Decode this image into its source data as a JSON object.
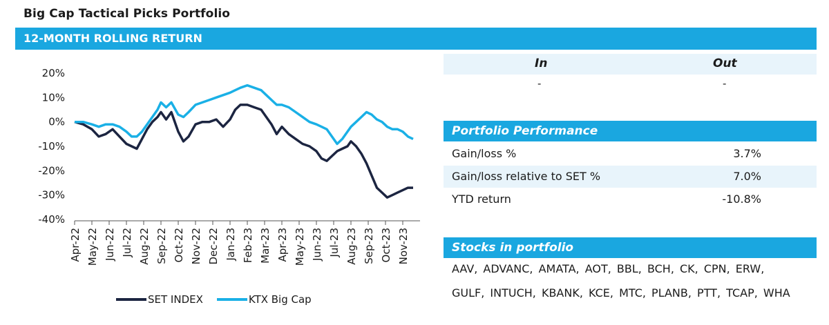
{
  "page": {
    "title": "Big Cap Tactical Picks Portfolio"
  },
  "section": {
    "title": "12-MONTH ROLLING RETURN"
  },
  "in_out": {
    "in_label": "In",
    "out_label": "Out",
    "in_value": "-",
    "out_value": "-"
  },
  "performance": {
    "title": "Portfolio Performance",
    "rows": [
      {
        "label": "Gain/loss %",
        "value": "3.7%"
      },
      {
        "label": "Gain/loss relative to SET %",
        "value": "7.0%"
      },
      {
        "label": "YTD return",
        "value": "-10.8%"
      }
    ]
  },
  "stocks": {
    "title": "Stocks in portfolio",
    "line1": "AAV, ADVANC, AMATA, AOT, BBL, BCH, CK, CPN, ERW,",
    "line2": "GULF, INTUCH, KBANK, KCE, MTC, PLANB, PTT, TCAP, WHA"
  },
  "colors": {
    "accent": "#1aa7e0",
    "set_line": "#1c2541",
    "ktx_line": "#1ab0e6",
    "light_row": "#e8f4fb"
  },
  "chart_data": {
    "type": "line",
    "title": "12-MONTH ROLLING RETURN",
    "xlabel": "",
    "ylabel": "",
    "ylim": [
      -40,
      20
    ],
    "yticks": [
      20,
      10,
      0,
      -10,
      -20,
      -30,
      -40
    ],
    "ytick_labels": [
      "20%",
      "10%",
      "0%",
      "-10%",
      "-20%",
      "-30%",
      "-40%"
    ],
    "xlim": [
      0,
      20
    ],
    "xtick_labels": [
      "Apr-22",
      "May-22",
      "Jun-22",
      "Jul-22",
      "Aug-22",
      "Sep-22",
      "Oct-22",
      "Nov-22",
      "Dec-22",
      "Jan-23",
      "Feb-23",
      "Mar-23",
      "Apr-23",
      "May-23",
      "Jun-23",
      "Jul-23",
      "Aug-23",
      "Sep-23",
      "Oct-23",
      "Nov-23"
    ],
    "legend_position": "bottom",
    "series": [
      {
        "name": "SET INDEX",
        "color": "#1c2541",
        "points": [
          [
            0,
            0
          ],
          [
            0.5,
            -1
          ],
          [
            1,
            -3
          ],
          [
            1.4,
            -6
          ],
          [
            1.8,
            -5
          ],
          [
            2.2,
            -3
          ],
          [
            2.6,
            -6
          ],
          [
            3.0,
            -9
          ],
          [
            3.3,
            -10
          ],
          [
            3.6,
            -11
          ],
          [
            3.9,
            -7
          ],
          [
            4.2,
            -3
          ],
          [
            4.5,
            0
          ],
          [
            4.8,
            2
          ],
          [
            5.0,
            4
          ],
          [
            5.3,
            1
          ],
          [
            5.6,
            4
          ],
          [
            6.0,
            -4
          ],
          [
            6.3,
            -8
          ],
          [
            6.6,
            -6
          ],
          [
            7.0,
            -1
          ],
          [
            7.4,
            0
          ],
          [
            7.8,
            0
          ],
          [
            8.2,
            1
          ],
          [
            8.6,
            -2
          ],
          [
            9.0,
            1
          ],
          [
            9.3,
            5
          ],
          [
            9.6,
            7
          ],
          [
            10.0,
            7
          ],
          [
            10.4,
            6
          ],
          [
            10.8,
            5
          ],
          [
            11.1,
            2
          ],
          [
            11.4,
            -1
          ],
          [
            11.7,
            -5
          ],
          [
            12.0,
            -2
          ],
          [
            12.4,
            -5
          ],
          [
            12.8,
            -7
          ],
          [
            13.2,
            -9
          ],
          [
            13.6,
            -10
          ],
          [
            14.0,
            -12
          ],
          [
            14.3,
            -15
          ],
          [
            14.6,
            -16
          ],
          [
            14.9,
            -14
          ],
          [
            15.2,
            -12
          ],
          [
            15.5,
            -11
          ],
          [
            15.8,
            -10
          ],
          [
            16.0,
            -8
          ],
          [
            16.3,
            -10
          ],
          [
            16.6,
            -13
          ],
          [
            16.9,
            -17
          ],
          [
            17.2,
            -22
          ],
          [
            17.5,
            -27
          ],
          [
            17.8,
            -29
          ],
          [
            18.1,
            -31
          ],
          [
            18.4,
            -30
          ],
          [
            18.7,
            -29
          ],
          [
            19.0,
            -28
          ],
          [
            19.3,
            -27
          ],
          [
            19.6,
            -27
          ]
        ]
      },
      {
        "name": "KTX Big Cap",
        "color": "#1ab0e6",
        "points": [
          [
            0,
            0
          ],
          [
            0.5,
            0
          ],
          [
            1,
            -1
          ],
          [
            1.4,
            -2
          ],
          [
            1.8,
            -1
          ],
          [
            2.2,
            -1
          ],
          [
            2.6,
            -2
          ],
          [
            3.0,
            -4
          ],
          [
            3.3,
            -6
          ],
          [
            3.6,
            -6
          ],
          [
            3.9,
            -4
          ],
          [
            4.2,
            -1
          ],
          [
            4.5,
            2
          ],
          [
            4.8,
            5
          ],
          [
            5.0,
            8
          ],
          [
            5.3,
            6
          ],
          [
            5.6,
            8
          ],
          [
            6.0,
            3
          ],
          [
            6.3,
            2
          ],
          [
            6.6,
            4
          ],
          [
            7.0,
            7
          ],
          [
            7.4,
            8
          ],
          [
            7.8,
            9
          ],
          [
            8.2,
            10
          ],
          [
            8.6,
            11
          ],
          [
            9.0,
            12
          ],
          [
            9.3,
            13
          ],
          [
            9.6,
            14
          ],
          [
            10.0,
            15
          ],
          [
            10.4,
            14
          ],
          [
            10.8,
            13
          ],
          [
            11.1,
            11
          ],
          [
            11.4,
            9
          ],
          [
            11.7,
            7
          ],
          [
            12.0,
            7
          ],
          [
            12.4,
            6
          ],
          [
            12.8,
            4
          ],
          [
            13.2,
            2
          ],
          [
            13.6,
            0
          ],
          [
            14.0,
            -1
          ],
          [
            14.3,
            -2
          ],
          [
            14.6,
            -3
          ],
          [
            14.9,
            -6
          ],
          [
            15.2,
            -9
          ],
          [
            15.5,
            -7
          ],
          [
            15.8,
            -4
          ],
          [
            16.0,
            -2
          ],
          [
            16.3,
            0
          ],
          [
            16.6,
            2
          ],
          [
            16.9,
            4
          ],
          [
            17.2,
            3
          ],
          [
            17.5,
            1
          ],
          [
            17.8,
            0
          ],
          [
            18.1,
            -2
          ],
          [
            18.4,
            -3
          ],
          [
            18.7,
            -3
          ],
          [
            19.0,
            -4
          ],
          [
            19.3,
            -6
          ],
          [
            19.6,
            -7
          ]
        ]
      }
    ]
  }
}
